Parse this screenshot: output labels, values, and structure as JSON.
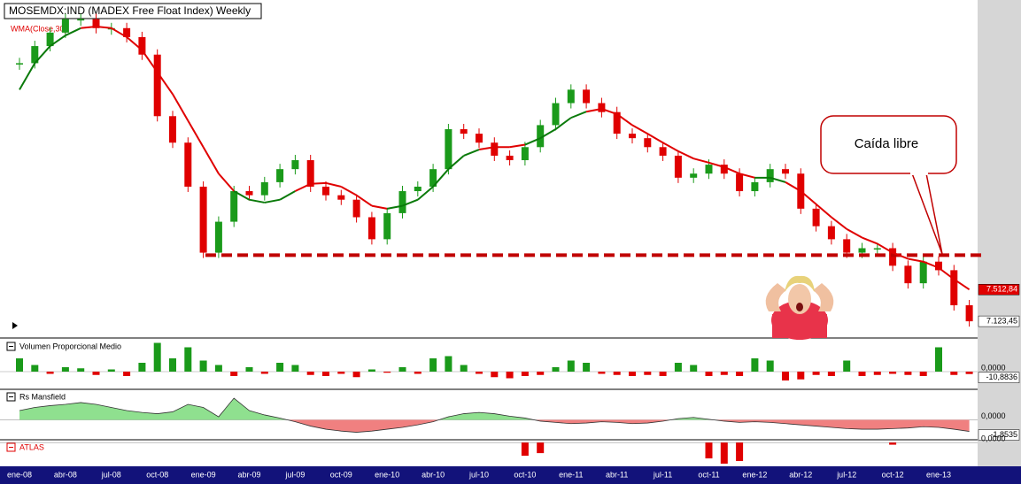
{
  "chart_data": [
    {
      "type": "candlestick",
      "title": "MOSEMDX:IND (MADEX Free Float Index) Weekly",
      "categories": [
        "ene-08",
        null,
        null,
        "abr-08",
        null,
        null,
        "jul-08",
        null,
        null,
        "oct-08",
        null,
        null,
        "ene-09",
        null,
        null,
        "abr-09",
        null,
        null,
        "jul-09",
        null,
        null,
        "oct-09",
        null,
        null,
        "ene-10",
        null,
        null,
        "abr-10",
        null,
        null,
        "jul-10",
        null,
        null,
        "oct-10",
        null,
        null,
        "ene-11",
        null,
        null,
        "abr-11",
        null,
        null,
        "jul-11",
        null,
        null,
        "oct-11",
        null,
        null,
        "ene-12",
        null,
        null,
        "abr-12",
        null,
        null,
        "jul-12",
        null,
        null,
        "oct-12",
        null,
        null,
        "ene-13",
        null,
        null
      ],
      "values": [
        10290,
        10500,
        10665,
        10830,
        10830,
        10720,
        10720,
        10610,
        10395,
        9640,
        9315,
        8775,
        7965,
        8345,
        8720,
        8670,
        8830,
        8990,
        9100,
        8775,
        8670,
        8615,
        8400,
        8130,
        8450,
        8720,
        8775,
        8990,
        9480,
        9425,
        9315,
        9155,
        9100,
        9260,
        9530,
        9800,
        9965,
        9800,
        9690,
        9425,
        9370,
        9260,
        9155,
        8885,
        8935,
        9045,
        8935,
        8720,
        8830,
        8990,
        8935,
        8505,
        8290,
        8130,
        7965,
        8020,
        8020,
        7805,
        7590,
        7855,
        7750,
        7320,
        7123.45
      ],
      "value_labels": [
        null,
        null,
        null,
        null,
        null,
        null,
        null,
        null,
        null,
        null,
        null,
        null,
        null,
        null,
        null,
        null,
        null,
        null,
        null,
        null,
        null,
        null,
        null,
        null,
        null,
        null,
        null,
        null,
        null,
        null,
        null,
        null,
        null,
        null,
        null,
        null,
        null,
        null,
        null,
        null,
        null,
        null,
        null,
        null,
        null,
        null,
        null,
        null,
        null,
        null,
        null,
        null,
        null,
        null,
        null,
        null,
        null,
        null,
        null,
        null,
        null,
        null,
        "7.123,45"
      ],
      "up_color": "#1a9a1a",
      "down_color": "#e00000",
      "series": [
        {
          "name": "WMA(Close,30)",
          "color": "#e00000",
          "color_below_price": "#0a7a0a",
          "values": [
            9965,
            10290,
            10500,
            10630,
            10720,
            10740,
            10720,
            10610,
            10450,
            10180,
            9910,
            9585,
            9260,
            8935,
            8720,
            8615,
            8580,
            8615,
            8720,
            8810,
            8820,
            8775,
            8670,
            8540,
            8505,
            8540,
            8615,
            8775,
            8990,
            9155,
            9230,
            9260,
            9260,
            9290,
            9370,
            9480,
            9620,
            9695,
            9730,
            9665,
            9530,
            9425,
            9315,
            9210,
            9120,
            9070,
            9015,
            8935,
            8885,
            8885,
            8830,
            8720,
            8560,
            8400,
            8255,
            8150,
            8075,
            7965,
            7890,
            7855,
            7780,
            7640,
            7512.84
          ],
          "value_labels": [
            null,
            null,
            null,
            null,
            null,
            null,
            null,
            null,
            null,
            null,
            null,
            null,
            null,
            null,
            null,
            null,
            null,
            null,
            null,
            null,
            null,
            null,
            null,
            null,
            null,
            null,
            null,
            null,
            null,
            null,
            null,
            null,
            null,
            null,
            null,
            null,
            null,
            null,
            null,
            null,
            null,
            null,
            null,
            null,
            null,
            null,
            null,
            null,
            null,
            null,
            null,
            null,
            null,
            null,
            null,
            null,
            null,
            null,
            null,
            null,
            null,
            null,
            "7.512,84"
          ]
        }
      ],
      "ylim": [
        6940,
        11000
      ],
      "support_level": 7935,
      "annotation": "Caída libre"
    },
    {
      "type": "bar",
      "title": "Volumen Proporcional Medio",
      "up_color": "#1a9a1a",
      "down_color": "#e00000",
      "values": [
        60,
        30,
        -10,
        20,
        15,
        -15,
        10,
        -20,
        40,
        130,
        60,
        110,
        50,
        30,
        -20,
        20,
        -10,
        40,
        30,
        -15,
        -20,
        -10,
        -25,
        10,
        -5,
        20,
        -10,
        60,
        70,
        30,
        -10,
        -25,
        -30,
        -20,
        -15,
        20,
        50,
        40,
        -10,
        -15,
        -20,
        -15,
        -20,
        40,
        30,
        -20,
        -15,
        -20,
        60,
        50,
        -40,
        -35,
        -15,
        -20,
        50,
        -20,
        -15,
        -10,
        -15,
        -20,
        110,
        -15,
        -10.8836
      ],
      "value_labels": [
        null,
        null,
        null,
        null,
        null,
        null,
        null,
        null,
        null,
        null,
        null,
        null,
        null,
        null,
        null,
        null,
        null,
        null,
        null,
        null,
        null,
        null,
        null,
        null,
        null,
        null,
        null,
        null,
        null,
        null,
        null,
        null,
        null,
        null,
        null,
        null,
        null,
        null,
        null,
        null,
        null,
        null,
        null,
        null,
        null,
        null,
        null,
        null,
        null,
        null,
        null,
        null,
        null,
        null,
        null,
        null,
        null,
        null,
        null,
        null,
        null,
        null,
        "-10,8836"
      ],
      "ylim": [
        -40,
        140
      ],
      "yticks": [
        {
          "value": 0,
          "label": "0,0000"
        }
      ]
    },
    {
      "type": "area",
      "title": "Rs Mansfield",
      "up_color": "#8fe08f",
      "down_color": "#f08080",
      "values": [
        1.5,
        2,
        2.3,
        2.5,
        2.8,
        2.5,
        2,
        1.5,
        1.2,
        1,
        1.3,
        2.5,
        2,
        0.5,
        3.5,
        1.5,
        0.8,
        0.3,
        -0.3,
        -1,
        -1.5,
        -1.8,
        -2,
        -1.8,
        -1.5,
        -1.2,
        -0.8,
        -0.3,
        0.5,
        1,
        1.2,
        1,
        0.6,
        0.3,
        -0.2,
        -0.4,
        -0.6,
        -0.5,
        -0.3,
        -0.4,
        -0.6,
        -0.5,
        -0.2,
        0.2,
        0.4,
        0.1,
        -0.2,
        -0.4,
        -0.3,
        -0.4,
        -0.6,
        -0.8,
        -1,
        -1.2,
        -1.4,
        -1.5,
        -1.5,
        -1.4,
        -1.3,
        -1.1,
        -1.2,
        -1.5,
        -1.8535
      ],
      "value_labels": [
        null,
        null,
        null,
        null,
        null,
        null,
        null,
        null,
        null,
        null,
        null,
        null,
        null,
        null,
        null,
        null,
        null,
        null,
        null,
        null,
        null,
        null,
        null,
        null,
        null,
        null,
        null,
        null,
        null,
        null,
        null,
        null,
        null,
        null,
        null,
        null,
        null,
        null,
        null,
        null,
        null,
        null,
        null,
        null,
        null,
        null,
        null,
        null,
        null,
        null,
        null,
        null,
        null,
        null,
        null,
        null,
        null,
        null,
        null,
        null,
        null,
        null,
        "-1,8535"
      ],
      "ylim": [
        -3.2,
        4.5
      ],
      "yticks": [
        {
          "value": 0,
          "label": "0,0000"
        }
      ]
    },
    {
      "type": "bar",
      "title": "ATLAS",
      "up_color": "#1a9a1a",
      "down_color": "#e00000",
      "values": [
        0,
        0,
        0,
        0,
        0,
        0,
        0,
        0,
        0,
        0,
        0,
        0,
        0,
        0,
        0,
        0,
        0,
        0,
        0,
        0,
        0,
        0,
        0,
        0,
        0,
        0,
        0,
        0,
        0,
        0,
        0,
        0,
        0,
        -2.5,
        -2,
        0,
        0,
        0,
        0,
        0,
        0,
        0,
        0,
        0,
        0,
        -3,
        -4,
        -3.5,
        0,
        0,
        0,
        0,
        0,
        0,
        0,
        0,
        0,
        -0.4,
        0,
        0,
        0,
        0,
        0
      ],
      "ylim": [
        -4.5,
        0.2
      ],
      "yticks": [
        {
          "value": 0,
          "label": "0,0000"
        }
      ]
    }
  ]
}
